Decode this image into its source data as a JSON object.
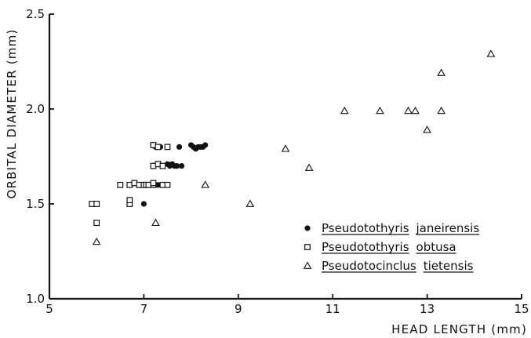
{
  "chart_data": {
    "type": "scatter",
    "xlabel": "HEAD LENGTH (mm)",
    "ylabel": "ORBITAL DIAMETER (mm)",
    "xlim": [
      5,
      15
    ],
    "ylim": [
      1.0,
      2.5
    ],
    "xticks": [
      5,
      7,
      9,
      11,
      13,
      15
    ],
    "xtick_labels": [
      "5",
      "7",
      "9",
      "11",
      "13",
      "15"
    ],
    "yticks": [
      1.0,
      1.5,
      2.0,
      2.5
    ],
    "ytick_labels": [
      "1.0",
      "1.5",
      "2.0",
      "2.5"
    ],
    "grid": false,
    "legend_position": "lower-right",
    "series": [
      {
        "name_genus": "Pseudotothyris",
        "name_species": "janeirensis",
        "marker": "filled-circle",
        "points": [
          [
            7.0,
            1.5
          ],
          [
            7.3,
            1.6
          ],
          [
            7.25,
            1.8
          ],
          [
            7.35,
            1.8
          ],
          [
            7.75,
            1.8
          ],
          [
            8.0,
            1.81
          ],
          [
            8.05,
            1.8
          ],
          [
            8.1,
            1.79
          ],
          [
            8.15,
            1.8
          ],
          [
            8.2,
            1.8
          ],
          [
            8.25,
            1.8
          ],
          [
            8.3,
            1.81
          ],
          [
            7.4,
            1.7
          ],
          [
            7.5,
            1.71
          ],
          [
            7.55,
            1.7
          ],
          [
            7.6,
            1.71
          ],
          [
            7.65,
            1.7
          ],
          [
            7.7,
            1.7
          ],
          [
            7.8,
            1.7
          ]
        ]
      },
      {
        "name_genus": "Pseudotothyris",
        "name_species": "obtusa",
        "marker": "open-square",
        "points": [
          [
            5.9,
            1.5
          ],
          [
            6.0,
            1.5
          ],
          [
            6.0,
            1.4
          ],
          [
            6.5,
            1.6
          ],
          [
            6.7,
            1.6
          ],
          [
            6.8,
            1.61
          ],
          [
            6.9,
            1.6
          ],
          [
            7.0,
            1.6
          ],
          [
            7.05,
            1.6
          ],
          [
            7.1,
            1.6
          ],
          [
            7.2,
            1.6
          ],
          [
            7.2,
            1.61
          ],
          [
            6.7,
            1.5
          ],
          [
            6.7,
            1.52
          ],
          [
            7.2,
            1.7
          ],
          [
            7.3,
            1.71
          ],
          [
            7.4,
            1.7
          ],
          [
            7.2,
            1.81
          ],
          [
            7.3,
            1.8
          ],
          [
            7.5,
            1.8
          ],
          [
            7.4,
            1.6
          ],
          [
            7.5,
            1.6
          ]
        ]
      },
      {
        "name_genus": "Pseudotocinclus",
        "name_species": "tietensis",
        "marker": "open-triangle",
        "points": [
          [
            6.0,
            1.3
          ],
          [
            7.25,
            1.4
          ],
          [
            8.3,
            1.6
          ],
          [
            9.25,
            1.5
          ],
          [
            10.0,
            1.79
          ],
          [
            10.5,
            1.69
          ],
          [
            11.25,
            1.99
          ],
          [
            12.0,
            1.99
          ],
          [
            12.6,
            1.99
          ],
          [
            12.75,
            1.99
          ],
          [
            13.0,
            1.89
          ],
          [
            13.3,
            1.99
          ],
          [
            13.3,
            2.19
          ],
          [
            14.35,
            2.29
          ]
        ]
      }
    ]
  }
}
